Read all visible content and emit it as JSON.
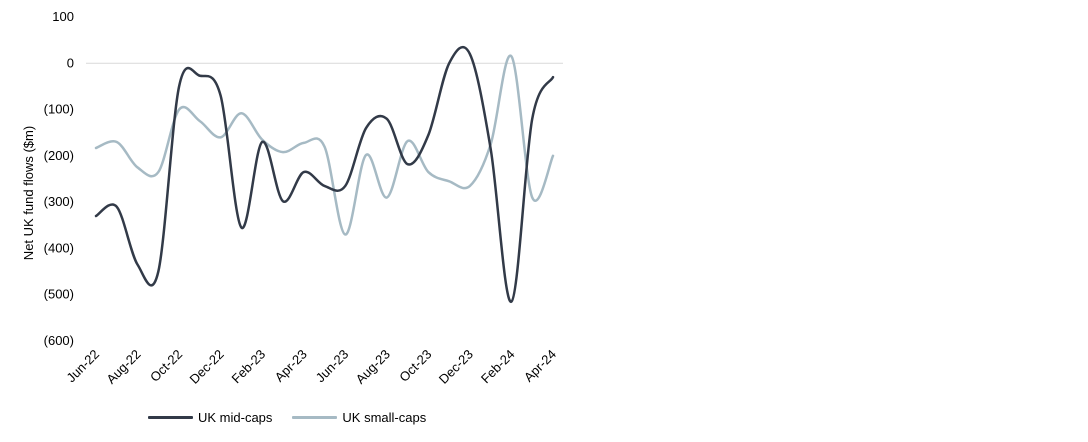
{
  "chart_data": {
    "type": "line",
    "title": "",
    "xlabel": "",
    "ylabel": "Net UK fund flows ($m)",
    "ylim": [
      -600,
      100
    ],
    "yticks": [
      100,
      0,
      -100,
      -200,
      -300,
      -400,
      -500,
      -600
    ],
    "ytick_labels": [
      "100",
      "0",
      "(100)",
      "(200)",
      "(300)",
      "(400)",
      "(500)",
      "(600)"
    ],
    "categories": [
      "Jun-22",
      "Jul-22",
      "Aug-22",
      "Sep-22",
      "Oct-22",
      "Nov-22",
      "Dec-22",
      "Jan-23",
      "Feb-23",
      "Mar-23",
      "Apr-23",
      "May-23",
      "Jun-23",
      "Jul-23",
      "Aug-23",
      "Sep-23",
      "Oct-23",
      "Nov-23",
      "Dec-23",
      "Jan-24",
      "Feb-24",
      "Mar-24",
      "Apr-24"
    ],
    "xtick_labels": [
      "Jun-22",
      "Aug-22",
      "Oct-22",
      "Dec-22",
      "Feb-23",
      "Apr-23",
      "Jun-23",
      "Aug-23",
      "Oct-23",
      "Dec-23",
      "Feb-24",
      "Apr-24"
    ],
    "grid": false,
    "legend_position": "bottom",
    "series": [
      {
        "name": "UK mid-caps",
        "color": "#323a48",
        "values": [
          -330,
          -310,
          -435,
          -450,
          -50,
          -27,
          -70,
          -355,
          -170,
          -298,
          -235,
          -265,
          -265,
          -140,
          -120,
          -218,
          -155,
          0,
          20,
          -185,
          -515,
          -120,
          -30
        ]
      },
      {
        "name": "UK small-caps",
        "color": "#a6bac4",
        "values": [
          -183,
          -170,
          -225,
          -235,
          -100,
          -125,
          -160,
          -108,
          -165,
          -192,
          -172,
          -180,
          -370,
          -198,
          -290,
          -168,
          -235,
          -255,
          -265,
          -175,
          15,
          -290,
          -200
        ]
      }
    ]
  }
}
